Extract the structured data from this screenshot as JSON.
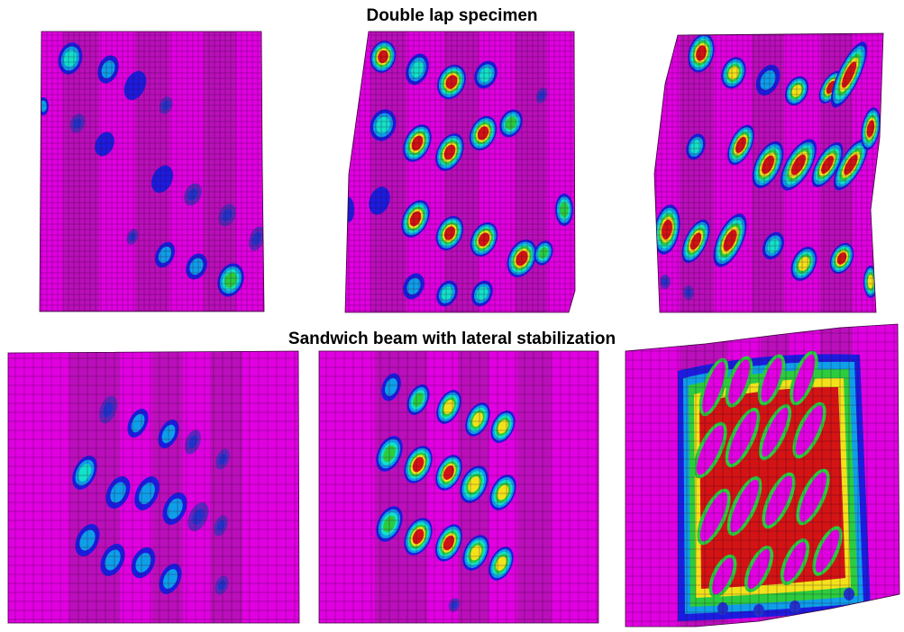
{
  "figure": {
    "title_top": "Double lap specimen",
    "title_bottom": "Sandwich beam with lateral stabilization"
  },
  "colors": {
    "mesh_base": "#e100e1",
    "stripe_dark": "#9c1b9c",
    "mesh_line": "#2a002a",
    "contour": [
      "#1c1ce0",
      "#0e9fe8",
      "#12e2c8",
      "#2bcc3e",
      "#f3e21a",
      "#d41414"
    ]
  },
  "panels": [
    {
      "group": "double-lap",
      "load_stage": 1,
      "mesh_cells": "fine",
      "stripes": 5
    },
    {
      "group": "double-lap",
      "load_stage": 2,
      "mesh_cells": "fine",
      "stripes": 5
    },
    {
      "group": "double-lap",
      "load_stage": 3,
      "mesh_cells": "fine",
      "stripes": 5
    },
    {
      "group": "sandwich-beam",
      "load_stage": 1,
      "mesh_cells": "coarse",
      "stripes": 4
    },
    {
      "group": "sandwich-beam",
      "load_stage": 2,
      "mesh_cells": "coarse",
      "stripes": 4
    },
    {
      "group": "sandwich-beam",
      "load_stage": 3,
      "mesh_cells": "coarse",
      "stripes": 4
    }
  ]
}
